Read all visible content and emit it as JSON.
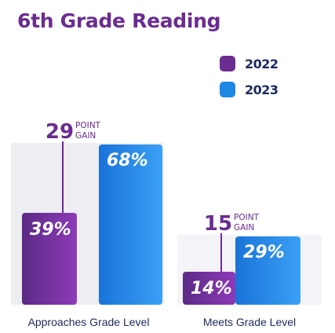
{
  "chart_data": {
    "type": "bar",
    "title": "6th Grade Reading",
    "categories": [
      "Approaches Grade Level",
      "Meets Grade Level"
    ],
    "series": [
      {
        "name": "2022",
        "values": [
          39,
          14
        ],
        "labels": [
          "39%",
          "14%"
        ],
        "color": "#6a2c91"
      },
      {
        "name": "2023",
        "values": [
          68,
          29
        ],
        "labels": [
          "68%",
          "29%"
        ],
        "color": "#1e88e5"
      }
    ],
    "annotations": [
      {
        "category": "Approaches Grade Level",
        "number": "29",
        "line1": "POINT",
        "line2": "GAIN"
      },
      {
        "category": "Meets Grade Level",
        "number": "15",
        "line1": "POINT",
        "line2": "GAIN"
      }
    ],
    "legend_position": "top-right",
    "ylim": [
      0,
      100
    ]
  }
}
